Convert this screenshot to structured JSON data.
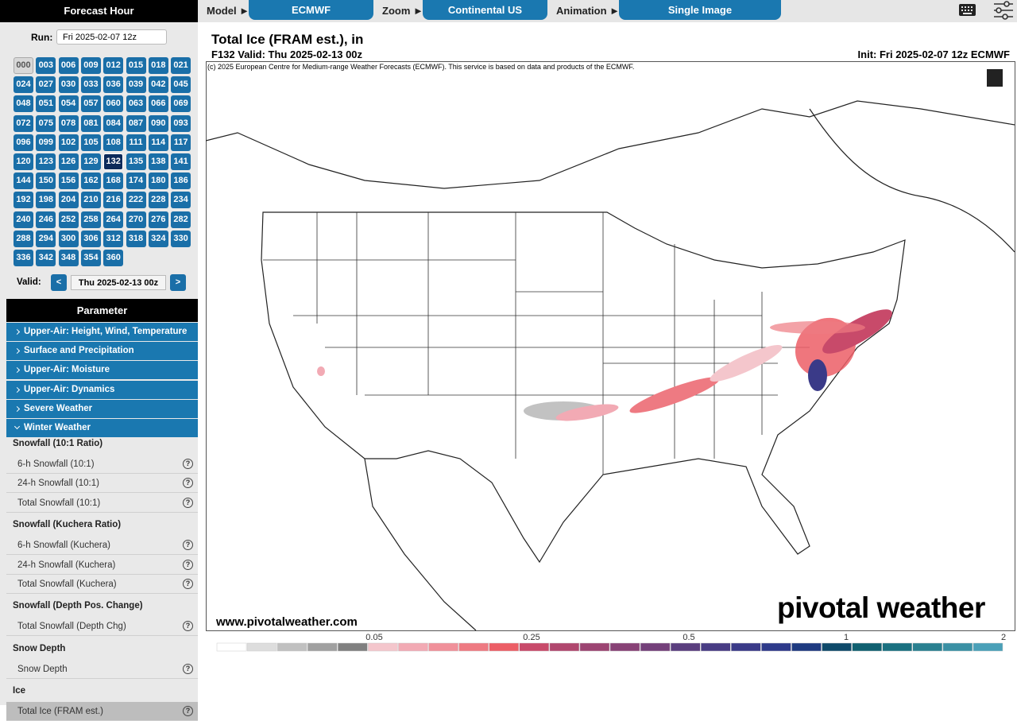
{
  "sidebar": {
    "forecast_header": "Forecast Hour",
    "run_label": "Run:",
    "run_value": "Fri 2025-02-07 12z",
    "hours": [
      "000",
      "003",
      "006",
      "009",
      "012",
      "015",
      "018",
      "021",
      "024",
      "027",
      "030",
      "033",
      "036",
      "039",
      "042",
      "045",
      "048",
      "051",
      "054",
      "057",
      "060",
      "063",
      "066",
      "069",
      "072",
      "075",
      "078",
      "081",
      "084",
      "087",
      "090",
      "093",
      "096",
      "099",
      "102",
      "105",
      "108",
      "111",
      "114",
      "117",
      "120",
      "123",
      "126",
      "129",
      "132",
      "135",
      "138",
      "141",
      "144",
      "150",
      "156",
      "162",
      "168",
      "174",
      "180",
      "186",
      "192",
      "198",
      "204",
      "210",
      "216",
      "222",
      "228",
      "234",
      "240",
      "246",
      "252",
      "258",
      "264",
      "270",
      "276",
      "282",
      "288",
      "294",
      "300",
      "306",
      "312",
      "318",
      "324",
      "330",
      "336",
      "342",
      "348",
      "354",
      "360"
    ],
    "active_hour": "132",
    "disabled_hours": [
      "000"
    ],
    "valid_label": "Valid:",
    "prev": "<",
    "valid_value": "Thu 2025-02-13 00z",
    "next": ">",
    "parameter_header": "Parameter",
    "categories": [
      "Upper-Air: Height, Wind, Temperature",
      "Surface and Precipitation",
      "Upper-Air: Moisture",
      "Upper-Air: Dynamics",
      "Severe Weather",
      "Winter Weather"
    ],
    "expanded_category": "Winter Weather",
    "groups": [
      {
        "title": "Snowfall (10:1 Ratio)",
        "items": [
          "6-h Snowfall (10:1)",
          "24-h Snowfall (10:1)",
          "Total Snowfall (10:1)"
        ]
      },
      {
        "title": "Snowfall (Kuchera Ratio)",
        "items": [
          "6-h Snowfall (Kuchera)",
          "24-h Snowfall (Kuchera)",
          "Total Snowfall (Kuchera)"
        ]
      },
      {
        "title": "Snowfall (Depth Pos. Change)",
        "items": [
          "Total Snowfall (Depth Chg)"
        ]
      },
      {
        "title": "Snow Depth",
        "items": [
          "Snow Depth"
        ]
      },
      {
        "title": "Ice",
        "items": [
          "Total Ice (FRAM est.)"
        ]
      }
    ],
    "active_parameter": "Total Ice (FRAM est.)",
    "help": "?"
  },
  "toolbar": {
    "model_label": "Model ►",
    "model": "ECMWF",
    "zoom_label": "Zoom ►",
    "zoom": "Continental US",
    "animation_label": "Animation ►",
    "animation": "Single Image"
  },
  "map": {
    "title": "Total Ice (FRAM est.), in",
    "valid": "F132 Valid: Thu 2025-02-13 00z",
    "init": "Init: Fri 2025-02-07 12z ECMWF",
    "copyright": "(c) 2025 European Centre for Medium-range Weather Forecasts (ECMWF). This service is based on data and products of the ECMWF.",
    "website": "www.pivotalweather.com",
    "logo": "pivotal weather",
    "colorbar": {
      "colors": [
        "#ffffff",
        "#dddddd",
        "#c0c0c0",
        "#a0a0a0",
        "#808080",
        "#f4c6cc",
        "#f2aab4",
        "#f0909a",
        "#ee7a82",
        "#ec5e66",
        "#c84a6a",
        "#b0476e",
        "#9c4472",
        "#884276",
        "#74407a",
        "#5a3e7e",
        "#483c84",
        "#3a3a88",
        "#2e3a8a",
        "#1e3a80",
        "#0e4a6a",
        "#106070",
        "#1a7080",
        "#2a8090",
        "#3a90a4",
        "#4aa0b8"
      ],
      "labels": [
        "0.05",
        "0.25",
        "0.5",
        "1",
        "2"
      ]
    }
  }
}
